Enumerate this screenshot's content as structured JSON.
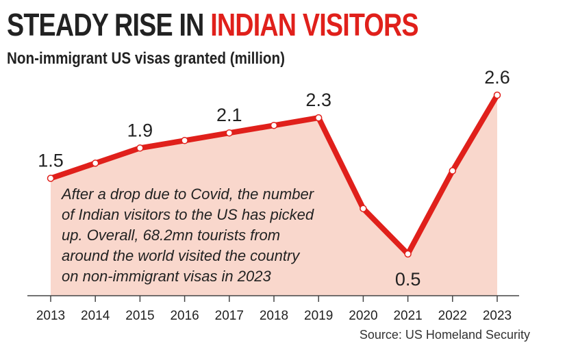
{
  "header": {
    "title_part1": "STEADY RISE IN ",
    "title_part2": "INDIAN VISITORS",
    "subtitle": "Non-immigrant US visas granted (million)"
  },
  "annotation": [
    "After a drop due to Covid, the number",
    "of Indian visitors to the US has picked",
    "up. Overall, 68.2mn tourists from",
    "around the world visited the country",
    "on non-immigrant visas in 2023"
  ],
  "source": "Source: US Homeland Security",
  "colors": {
    "line": "#e0201b",
    "area": "#f9d7cc",
    "accent": "#e0201b"
  },
  "chart_data": {
    "type": "area",
    "title": "Non-immigrant US visas granted (million)",
    "xlabel": "",
    "ylabel": "million",
    "grid": false,
    "categories": [
      "2013",
      "2014",
      "2015",
      "2016",
      "2017",
      "2018",
      "2019",
      "2020",
      "2021",
      "2022",
      "2023"
    ],
    "series": [
      {
        "name": "Non-immigrant US visas granted",
        "values": [
          1.5,
          1.7,
          1.9,
          2.0,
          2.1,
          2.2,
          2.3,
          1.1,
          0.5,
          1.6,
          2.6
        ]
      }
    ],
    "data_labels": [
      {
        "year": "2013",
        "text": "1.5"
      },
      {
        "year": "2015",
        "text": "1.9"
      },
      {
        "year": "2017",
        "text": "2.1"
      },
      {
        "year": "2019",
        "text": "2.3"
      },
      {
        "year": "2021",
        "text": "0.5"
      },
      {
        "year": "2023",
        "text": "2.6"
      }
    ],
    "ylim": [
      0,
      3
    ]
  }
}
